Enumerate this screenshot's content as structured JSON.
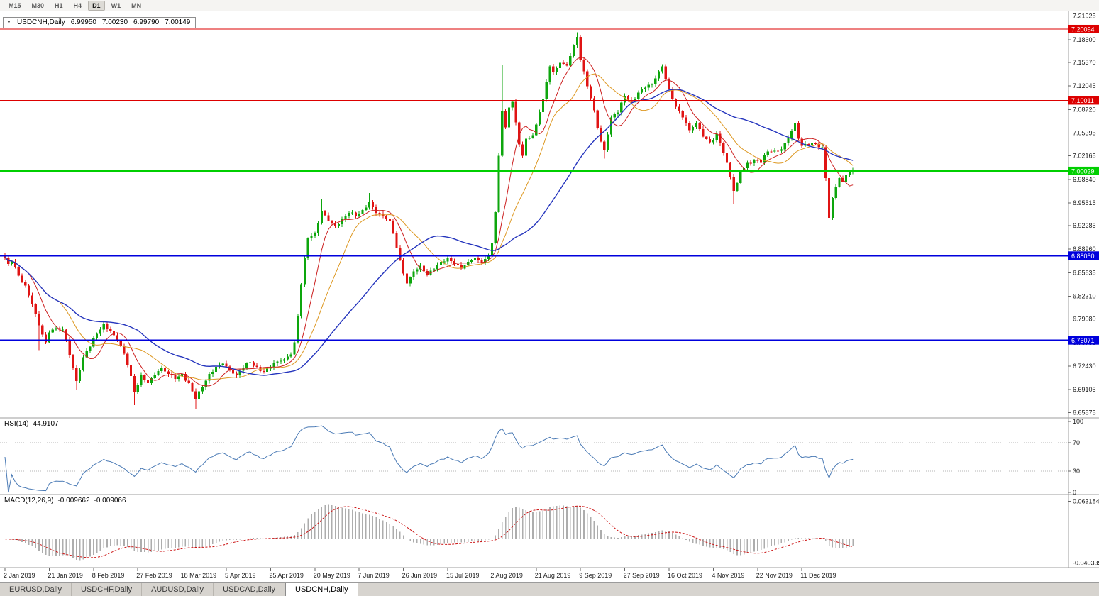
{
  "toolbar": {
    "timeframes": [
      "M15",
      "M30",
      "H1",
      "H4",
      "D1",
      "W1",
      "MN"
    ],
    "active": "D1"
  },
  "icons": {
    "dropdown": "▼"
  },
  "chart": {
    "symbol_label": "USDCNH,Daily",
    "ohlc": {
      "open": "6.99950",
      "high": "7.00230",
      "low": "6.99790",
      "close": "7.00149"
    }
  },
  "chart_data": {
    "type": "candlestick",
    "title": "USDCNH,Daily",
    "x_unit": "trading day index starting 2 Jan 2019",
    "num_candles": 250,
    "price_axis_labels": [
      "7.21925",
      "7.18600",
      "7.15370",
      "7.12045",
      "7.08720",
      "7.05395",
      "7.02165",
      "6.98840",
      "6.95515",
      "6.92285",
      "6.88960",
      "6.85635",
      "6.82310",
      "6.79080",
      "6.75755",
      "6.72430",
      "6.69105",
      "6.65875"
    ],
    "time_axis_labels": [
      "2 Jan 2019",
      "21 Jan 2019",
      "8 Feb 2019",
      "27 Feb 2019",
      "18 Mar 2019",
      "5 Apr 2019",
      "25 Apr 2019",
      "20 May 2019",
      "7 Jun 2019",
      "26 Jun 2019",
      "15 Jul 2019",
      "2 Aug 2019",
      "21 Aug 2019",
      "9 Sep 2019",
      "27 Sep 2019",
      "16 Oct 2019",
      "4 Nov 2019",
      "22 Nov 2019",
      "11 Dec 2019"
    ],
    "ticks_per_label": 13,
    "y_range": [
      6.652,
      7.225
    ],
    "horizontal_lines": [
      {
        "value": 7.20094,
        "label": "7.20094",
        "color": "#dd0000",
        "width": 1
      },
      {
        "value": 7.10011,
        "label": "7.10011",
        "color": "#dd0000",
        "width": 1
      },
      {
        "value": 7.00029,
        "label": "7.00029",
        "color": "#00cf00",
        "width": 2
      },
      {
        "value": 6.8805,
        "label": "6.88050",
        "color": "#0000dd",
        "width": 2
      },
      {
        "value": 6.76071,
        "label": "6.76071",
        "color": "#0000dd",
        "width": 2
      }
    ],
    "colors": {
      "up": "#0da60d",
      "down": "#e01414",
      "ma_fast": "#cc2020",
      "ma_mid": "#dd9822",
      "ma_slow": "#2434bd",
      "rsi": "#4a7ab5",
      "macd_hist": "#adadad",
      "macd_signal": "#cc1414",
      "dotted_level": "#b5b5b5",
      "separator": "#9c9c9c",
      "axis_tick": "#666666"
    },
    "moving_averages": [
      {
        "name": "ma-fast-red",
        "period": 8,
        "color": "#cc2020",
        "width": 1
      },
      {
        "name": "ma-mid-orange",
        "period": 17,
        "color": "#dd9822",
        "width": 1
      },
      {
        "name": "ma-slow-blue",
        "period": 40,
        "color": "#2434bd",
        "width": 1.4
      }
    ],
    "close_anchors": [
      [
        0,
        6.878
      ],
      [
        1,
        6.869
      ],
      [
        2,
        6.872
      ],
      [
        4,
        6.852
      ],
      [
        6,
        6.838
      ],
      [
        8,
        6.812
      ],
      [
        10,
        6.782
      ],
      [
        12,
        6.758
      ],
      [
        13,
        6.772
      ],
      [
        15,
        6.778
      ],
      [
        17,
        6.776
      ],
      [
        18,
        6.762
      ],
      [
        20,
        6.722
      ],
      [
        21,
        6.703
      ],
      [
        23,
        6.737
      ],
      [
        25,
        6.752
      ],
      [
        27,
        6.77
      ],
      [
        29,
        6.784
      ],
      [
        31,
        6.774
      ],
      [
        33,
        6.76
      ],
      [
        35,
        6.742
      ],
      [
        37,
        6.71
      ],
      [
        38,
        6.688
      ],
      [
        40,
        6.712
      ],
      [
        42,
        6.7
      ],
      [
        44,
        6.712
      ],
      [
        46,
        6.722
      ],
      [
        48,
        6.713
      ],
      [
        50,
        6.706
      ],
      [
        52,
        6.713
      ],
      [
        54,
        6.7
      ],
      [
        56,
        6.678
      ],
      [
        58,
        6.694
      ],
      [
        60,
        6.713
      ],
      [
        62,
        6.723
      ],
      [
        64,
        6.728
      ],
      [
        66,
        6.719
      ],
      [
        68,
        6.711
      ],
      [
        70,
        6.722
      ],
      [
        72,
        6.73
      ],
      [
        74,
        6.723
      ],
      [
        76,
        6.716
      ],
      [
        78,
        6.723
      ],
      [
        80,
        6.731
      ],
      [
        82,
        6.734
      ],
      [
        84,
        6.741
      ],
      [
        85,
        6.758
      ],
      [
        86,
        6.795
      ],
      [
        87,
        6.84
      ],
      [
        88,
        6.878
      ],
      [
        89,
        6.905
      ],
      [
        91,
        6.912
      ],
      [
        93,
        6.943
      ],
      [
        95,
        6.93
      ],
      [
        97,
        6.923
      ],
      [
        99,
        6.932
      ],
      [
        101,
        6.941
      ],
      [
        103,
        6.936
      ],
      [
        105,
        6.945
      ],
      [
        107,
        6.956
      ],
      [
        109,
        6.941
      ],
      [
        111,
        6.937
      ],
      [
        113,
        6.93
      ],
      [
        115,
        6.892
      ],
      [
        117,
        6.855
      ],
      [
        118,
        6.841
      ],
      [
        120,
        6.858
      ],
      [
        122,
        6.866
      ],
      [
        124,
        6.853
      ],
      [
        126,
        6.861
      ],
      [
        128,
        6.872
      ],
      [
        130,
        6.878
      ],
      [
        132,
        6.869
      ],
      [
        134,
        6.862
      ],
      [
        136,
        6.872
      ],
      [
        138,
        6.877
      ],
      [
        140,
        6.871
      ],
      [
        142,
        6.882
      ],
      [
        143,
        6.898
      ],
      [
        144,
        6.942
      ],
      [
        145,
        7.022
      ],
      [
        146,
        7.085
      ],
      [
        147,
        7.062
      ],
      [
        148,
        7.09
      ],
      [
        149,
        7.098
      ],
      [
        151,
        7.038
      ],
      [
        152,
        7.022
      ],
      [
        153,
        7.046
      ],
      [
        155,
        7.051
      ],
      [
        156,
        7.066
      ],
      [
        158,
        7.102
      ],
      [
        160,
        7.148
      ],
      [
        161,
        7.14
      ],
      [
        163,
        7.153
      ],
      [
        165,
        7.149
      ],
      [
        167,
        7.178
      ],
      [
        168,
        7.19
      ],
      [
        169,
        7.158
      ],
      [
        171,
        7.12
      ],
      [
        173,
        7.086
      ],
      [
        175,
        7.042
      ],
      [
        176,
        7.03
      ],
      [
        178,
        7.076
      ],
      [
        180,
        7.083
      ],
      [
        182,
        7.106
      ],
      [
        184,
        7.098
      ],
      [
        186,
        7.111
      ],
      [
        188,
        7.118
      ],
      [
        190,
        7.123
      ],
      [
        192,
        7.141
      ],
      [
        193,
        7.148
      ],
      [
        195,
        7.116
      ],
      [
        197,
        7.091
      ],
      [
        199,
        7.076
      ],
      [
        201,
        7.058
      ],
      [
        203,
        7.068
      ],
      [
        205,
        7.049
      ],
      [
        207,
        7.041
      ],
      [
        209,
        7.053
      ],
      [
        211,
        7.026
      ],
      [
        213,
        6.992
      ],
      [
        214,
        6.972
      ],
      [
        215,
        6.983
      ],
      [
        216,
        6.998
      ],
      [
        218,
        7.012
      ],
      [
        220,
        7.016
      ],
      [
        222,
        7.012
      ],
      [
        224,
        7.028
      ],
      [
        226,
        7.029
      ],
      [
        228,
        7.031
      ],
      [
        230,
        7.047
      ],
      [
        232,
        7.068
      ],
      [
        233,
        7.046
      ],
      [
        234,
        7.036
      ],
      [
        236,
        7.037
      ],
      [
        238,
        7.039
      ],
      [
        240,
        7.034
      ],
      [
        241,
        6.99
      ],
      [
        242,
        6.934
      ],
      [
        243,
        6.962
      ],
      [
        244,
        6.978
      ],
      [
        245,
        6.99
      ],
      [
        246,
        6.985
      ],
      [
        247,
        6.994
      ],
      [
        248,
        6.999
      ],
      [
        249,
        7.0015
      ]
    ],
    "wick_overrides": [
      [
        10,
        "l",
        6.747
      ],
      [
        21,
        "l",
        6.69
      ],
      [
        38,
        "l",
        6.669
      ],
      [
        56,
        "l",
        6.664
      ],
      [
        93,
        "h",
        6.961
      ],
      [
        107,
        "h",
        6.969
      ],
      [
        118,
        "l",
        6.827
      ],
      [
        146,
        "h",
        7.15
      ],
      [
        148,
        "h",
        7.12
      ],
      [
        168,
        "h",
        7.1962
      ],
      [
        176,
        "l",
        7.018
      ],
      [
        214,
        "l",
        6.953
      ],
      [
        232,
        "h",
        7.079
      ],
      [
        242,
        "l",
        6.916
      ]
    ],
    "rsi": {
      "label": "RSI(14)",
      "value": "44.9107",
      "period": 14,
      "axis_labels": [
        "100",
        "70",
        "30",
        "0"
      ],
      "dotted_levels": [
        70,
        30
      ]
    },
    "macd": {
      "label": "MACD(12,26,9)",
      "value_main": "-0.009662",
      "value_signal": "-0.009066",
      "axis_labels": [
        "0.063184",
        "-0.040335"
      ],
      "axis_values": [
        0.063184,
        -0.040335
      ]
    }
  },
  "tabs": {
    "items": [
      "EURUSD,Daily",
      "USDCHF,Daily",
      "AUDUSD,Daily",
      "USDCAD,Daily",
      "USDCNH,Daily"
    ],
    "active_index": 4
  }
}
